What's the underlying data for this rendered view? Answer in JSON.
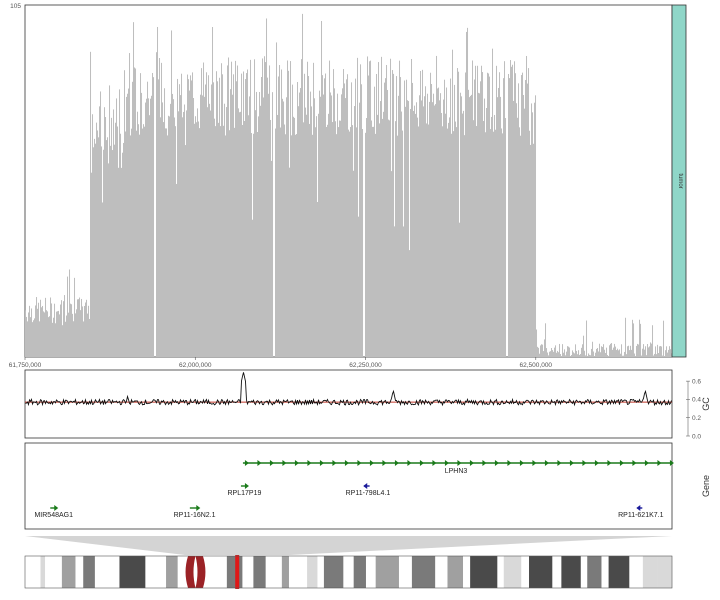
{
  "chart_data": [
    {
      "type": "bar",
      "track": "coverage",
      "ymax_label": "105",
      "ylim": [
        0,
        105
      ],
      "xlim": [
        61750000,
        62700000
      ],
      "x_ticks": [
        {
          "value": 61750000,
          "label": "61,750,000"
        },
        {
          "value": 62000000,
          "label": "62,000,000"
        },
        {
          "value": 62250000,
          "label": "62,250,000"
        },
        {
          "value": 62500000,
          "label": "62,500,000"
        }
      ],
      "segments": [
        {
          "start": 61750000,
          "end": 61845000,
          "level": 14,
          "noise": 4,
          "spike": 30
        },
        {
          "start": 61845000,
          "end": 61895000,
          "level": 68,
          "noise": 14,
          "spike": 92
        },
        {
          "start": 61895000,
          "end": 62490000,
          "level": 78,
          "noise": 12,
          "spike": 104
        },
        {
          "start": 62490000,
          "end": 62500000,
          "level": 70,
          "noise": 10,
          "spike": 90
        },
        {
          "start": 62500000,
          "end": 62700000,
          "level": 2,
          "noise": 2,
          "spike": 12
        }
      ],
      "gaps": [
        61940000,
        62115000,
        62247000,
        62457000
      ],
      "sample_label": "tumor",
      "sample_color": "#8fd6c8",
      "bar_color": "#bebebe",
      "grid": false
    },
    {
      "type": "line",
      "track": "GC",
      "ylabel": "GC",
      "ylim": [
        0,
        0.7
      ],
      "y_ticks": [
        {
          "value": 0.0,
          "label": "0.0"
        },
        {
          "value": 0.2,
          "label": "0.2"
        },
        {
          "value": 0.4,
          "label": "0.4"
        },
        {
          "value": 0.6,
          "label": "0.6"
        }
      ],
      "baseline": 0.37,
      "peaks": [
        {
          "x": 61900000,
          "value": 0.44
        },
        {
          "x": 62070000,
          "value": 0.7
        },
        {
          "x": 62290000,
          "value": 0.5
        },
        {
          "x": 62660000,
          "value": 0.5
        }
      ],
      "line_color": "#111111",
      "mean_color": "#c0392b"
    }
  ],
  "genes_track": {
    "ylabel": "Gene",
    "genes": [
      {
        "name": "LPHN3",
        "start": 62070000,
        "end": 62700000,
        "strand": "+",
        "row": 0,
        "color": "#1a7a1a"
      },
      {
        "name": "RPL17P19",
        "start": 62070000,
        "end": 62073000,
        "strand": "+",
        "row": 1,
        "color": "#1a7a1a"
      },
      {
        "name": "RP11-798L4.1",
        "start": 62251000,
        "end": 62256000,
        "strand": "-",
        "row": 1,
        "color": "#1a1a9a"
      },
      {
        "name": "MIR548AG1",
        "start": 61790000,
        "end": 61793000,
        "strand": "+",
        "row": 2,
        "color": "#1a7a1a"
      },
      {
        "name": "RP11-16N2.1",
        "start": 61995000,
        "end": 62003000,
        "strand": "+",
        "row": 2,
        "color": "#1a7a1a"
      },
      {
        "name": "RP11-621K7.1",
        "start": 62652000,
        "end": 62656000,
        "strand": "-",
        "row": 2,
        "color": "#1a1a9a"
      }
    ]
  },
  "ideogram": {
    "centromere_color": "#9b2226",
    "highlight_color": "#e01818",
    "bands": [
      {
        "end": 0.024,
        "shade": "#ffffff"
      },
      {
        "end": 0.031,
        "shade": "#d9d9d9"
      },
      {
        "end": 0.057,
        "shade": "#ffffff"
      },
      {
        "end": 0.078,
        "shade": "#a0a0a0"
      },
      {
        "end": 0.09,
        "shade": "#ffffff"
      },
      {
        "end": 0.108,
        "shade": "#7a7a7a"
      },
      {
        "end": 0.146,
        "shade": "#ffffff"
      },
      {
        "end": 0.186,
        "shade": "#4a4a4a"
      },
      {
        "end": 0.218,
        "shade": "#ffffff"
      },
      {
        "end": 0.236,
        "shade": "#a0a0a0"
      },
      {
        "end": 0.252,
        "shade": "#ffffff"
      },
      {
        "end": 0.258,
        "shade": "#d9d9d9"
      },
      {
        "end": 0.267,
        "shade": "#ffffff"
      },
      {
        "end": 0.275,
        "shade": "#centromere"
      },
      {
        "end": 0.287,
        "shade": "#centromere"
      },
      {
        "end": 0.298,
        "shade": "#ffffff"
      },
      {
        "end": 0.312,
        "shade": "#ffffff"
      },
      {
        "end": 0.336,
        "shade": "#7a7a7a"
      },
      {
        "end": 0.353,
        "shade": "#ffffff"
      },
      {
        "end": 0.372,
        "shade": "#7a7a7a"
      },
      {
        "end": 0.397,
        "shade": "#ffffff"
      },
      {
        "end": 0.408,
        "shade": "#a0a0a0"
      },
      {
        "end": 0.436,
        "shade": "#ffffff"
      },
      {
        "end": 0.452,
        "shade": "#d9d9d9"
      },
      {
        "end": 0.462,
        "shade": "#ffffff"
      },
      {
        "end": 0.492,
        "shade": "#7a7a7a"
      },
      {
        "end": 0.508,
        "shade": "#ffffff"
      },
      {
        "end": 0.527,
        "shade": "#7a7a7a"
      },
      {
        "end": 0.542,
        "shade": "#ffffff"
      },
      {
        "end": 0.578,
        "shade": "#a0a0a0"
      },
      {
        "end": 0.598,
        "shade": "#ffffff"
      },
      {
        "end": 0.634,
        "shade": "#7a7a7a"
      },
      {
        "end": 0.653,
        "shade": "#ffffff"
      },
      {
        "end": 0.677,
        "shade": "#a0a0a0"
      },
      {
        "end": 0.688,
        "shade": "#ffffff"
      },
      {
        "end": 0.73,
        "shade": "#4a4a4a"
      },
      {
        "end": 0.74,
        "shade": "#ffffff"
      },
      {
        "end": 0.767,
        "shade": "#d9d9d9"
      },
      {
        "end": 0.779,
        "shade": "#ffffff"
      },
      {
        "end": 0.815,
        "shade": "#4a4a4a"
      },
      {
        "end": 0.829,
        "shade": "#ffffff"
      },
      {
        "end": 0.859,
        "shade": "#4a4a4a"
      },
      {
        "end": 0.869,
        "shade": "#ffffff"
      },
      {
        "end": 0.891,
        "shade": "#7a7a7a"
      },
      {
        "end": 0.902,
        "shade": "#ffffff"
      },
      {
        "end": 0.934,
        "shade": "#4a4a4a"
      },
      {
        "end": 0.955,
        "shade": "#ffffff"
      },
      {
        "end": 0.978,
        "shade": "#d9d9d9"
      },
      {
        "end": 1.0,
        "shade": "#d9d9d9"
      }
    ],
    "centromere": [
      0.252,
      0.275
    ],
    "highlight": 0.328
  }
}
